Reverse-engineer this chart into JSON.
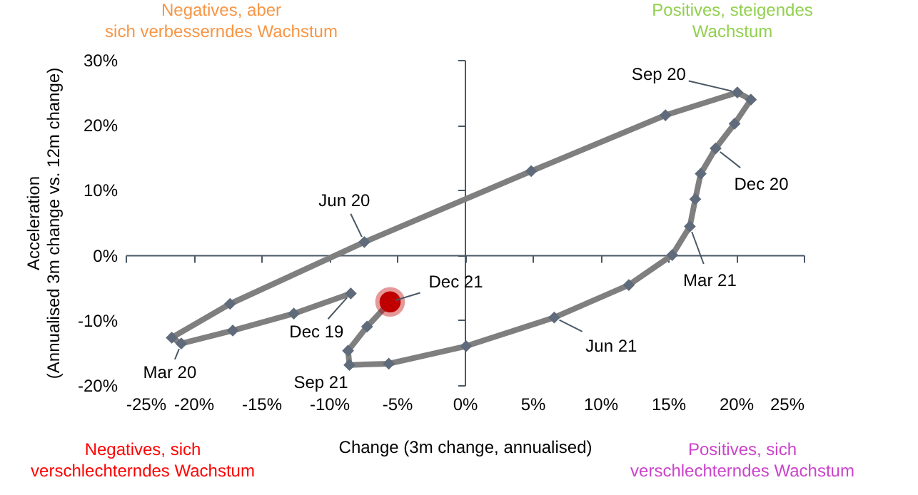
{
  "chart_data": {
    "type": "line",
    "xlabel": "Change (3m change, annualised)",
    "ylabel": "Acceleration\n(Annualised 3m change vs. 12m change)",
    "xlim": [
      -25,
      25
    ],
    "xticks": [
      {
        "value": -25,
        "label": "-25%"
      },
      {
        "value": -20,
        "label": "-20%"
      },
      {
        "value": -15,
        "label": "-15%"
      },
      {
        "value": -10,
        "label": "-10%"
      },
      {
        "value": -5,
        "label": "-5%"
      },
      {
        "value": 0,
        "label": "0%"
      },
      {
        "value": 5,
        "label": "5%"
      },
      {
        "value": 10,
        "label": "10%"
      },
      {
        "value": 15,
        "label": "15%"
      },
      {
        "value": 20,
        "label": "20%"
      },
      {
        "value": 25,
        "label": "25%"
      }
    ],
    "ylim": [
      -20,
      30
    ],
    "yticks": [
      {
        "value": -20,
        "label": "-20%"
      },
      {
        "value": -10,
        "label": "-10%"
      },
      {
        "value": 0,
        "label": "0%"
      },
      {
        "value": 10,
        "label": "10%"
      },
      {
        "value": 20,
        "label": "20%"
      },
      {
        "value": 30,
        "label": "30%"
      }
    ],
    "marker": "diamond",
    "series": [
      {
        "type": "line",
        "color": "#7f7f7f",
        "x": [
          -8.4,
          -12.6,
          -17.1,
          -20.9,
          -21.6,
          -17.3,
          -7.4,
          4.9,
          14.8,
          20.1,
          21.1,
          19.9,
          18.5,
          17.4,
          17.0,
          16.6,
          15.3,
          12.1,
          6.6,
          0.1,
          -5.6,
          -8.5,
          -8.6,
          -7.2,
          -5.5
        ],
        "values": [
          -5.9,
          -9.0,
          -11.6,
          -13.6,
          -12.7,
          -7.5,
          2.0,
          12.9,
          21.5,
          25.0,
          23.9,
          20.2,
          16.4,
          12.5,
          8.6,
          4.4,
          0.0,
          -4.6,
          -9.6,
          -14.0,
          -16.7,
          -16.9,
          -14.7,
          -11.0,
          -7.2
        ]
      },
      {
        "type": "scatter",
        "marker": "circle",
        "color": "#c00000",
        "x": [
          -5.5
        ],
        "values": [
          -7.2
        ]
      }
    ],
    "annotations": [
      {
        "text": "Dec 19",
        "x": -8.4,
        "y": -5.9
      },
      {
        "text": "Mar 20",
        "x": -20.9,
        "y": -13.6
      },
      {
        "text": "Jun 20",
        "x": -7.4,
        "y": 2.0
      },
      {
        "text": "Sep 20",
        "x": 20.1,
        "y": 25.0
      },
      {
        "text": "Dec 20",
        "x": 18.5,
        "y": 16.4
      },
      {
        "text": "Mar 21",
        "x": 16.6,
        "y": 4.4
      },
      {
        "text": "Jun 21",
        "x": 6.6,
        "y": -9.6
      },
      {
        "text": "Sep 21",
        "x": -8.5,
        "y": -16.9
      },
      {
        "text": "Dec 21",
        "x": -5.5,
        "y": -7.2
      },
      "Negatives, aber\nsich verbesserndes Wachstum",
      "Positives, steigendes\nWachstum",
      "Negatives, sich\nverschlechterndes Wachstum",
      "Positives, sich\nverschlechterndes Wachstum"
    ]
  }
}
